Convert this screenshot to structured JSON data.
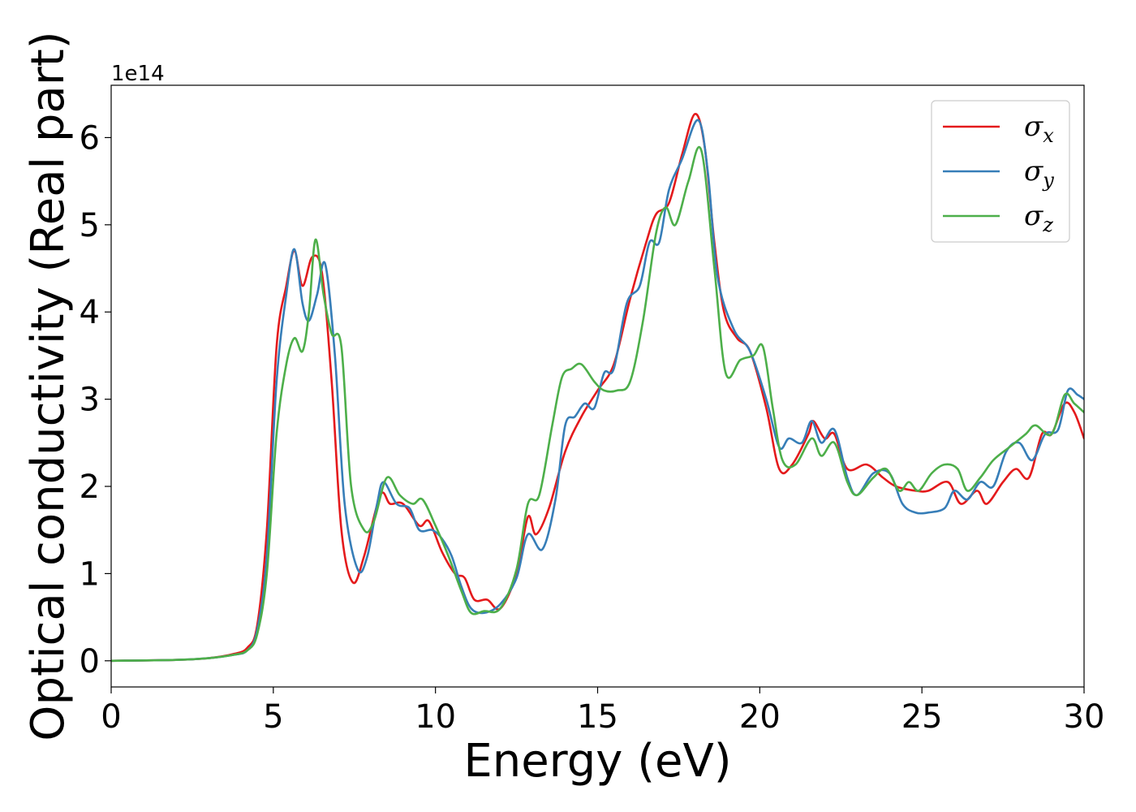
{
  "chart_data": {
    "type": "line",
    "title": "",
    "xlabel": "Energy (eV)",
    "ylabel": "Optical conductivity (Real part)",
    "y_offset_label": "1e14",
    "xlim": [
      0,
      30
    ],
    "ylim": [
      -0.3,
      6.6
    ],
    "x_ticks": [
      0,
      5,
      10,
      15,
      20,
      25,
      30
    ],
    "y_ticks": [
      0,
      1,
      2,
      3,
      4,
      5,
      6
    ],
    "grid": false,
    "legend_position": "top-right",
    "series": [
      {
        "name": "σx",
        "symbol": "σ",
        "subscript": "x",
        "color": "#e41a1c",
        "points": [
          [
            0,
            0
          ],
          [
            2,
            0.01
          ],
          [
            3,
            0.03
          ],
          [
            3.8,
            0.08
          ],
          [
            4.2,
            0.15
          ],
          [
            4.5,
            0.4
          ],
          [
            4.8,
            1.5
          ],
          [
            5.1,
            3.6
          ],
          [
            5.4,
            4.3
          ],
          [
            5.65,
            4.7
          ],
          [
            5.9,
            4.3
          ],
          [
            6.2,
            4.63
          ],
          [
            6.5,
            4.45
          ],
          [
            6.8,
            3.2
          ],
          [
            7.1,
            1.5
          ],
          [
            7.45,
            0.9
          ],
          [
            7.8,
            1.2
          ],
          [
            8.3,
            1.9
          ],
          [
            8.6,
            1.8
          ],
          [
            9,
            1.8
          ],
          [
            9.5,
            1.55
          ],
          [
            9.8,
            1.6
          ],
          [
            10.2,
            1.25
          ],
          [
            10.6,
            1.0
          ],
          [
            10.9,
            0.95
          ],
          [
            11.2,
            0.7
          ],
          [
            11.6,
            0.7
          ],
          [
            12,
            0.6
          ],
          [
            12.5,
            1.0
          ],
          [
            12.85,
            1.65
          ],
          [
            13.1,
            1.45
          ],
          [
            13.5,
            1.75
          ],
          [
            14,
            2.4
          ],
          [
            14.5,
            2.8
          ],
          [
            15,
            3.1
          ],
          [
            15.5,
            3.4
          ],
          [
            16,
            4.15
          ],
          [
            16.5,
            4.8
          ],
          [
            16.8,
            5.12
          ],
          [
            17.2,
            5.25
          ],
          [
            17.6,
            5.8
          ],
          [
            18,
            6.27
          ],
          [
            18.3,
            5.9
          ],
          [
            18.6,
            4.8
          ],
          [
            18.9,
            4.0
          ],
          [
            19.3,
            3.7
          ],
          [
            19.7,
            3.55
          ],
          [
            20.2,
            2.9
          ],
          [
            20.6,
            2.2
          ],
          [
            21,
            2.25
          ],
          [
            21.5,
            2.6
          ],
          [
            21.65,
            2.75
          ],
          [
            22,
            2.55
          ],
          [
            22.3,
            2.6
          ],
          [
            22.7,
            2.2
          ],
          [
            23.3,
            2.25
          ],
          [
            23.8,
            2.1
          ],
          [
            24.2,
            2.0
          ],
          [
            24.8,
            1.95
          ],
          [
            25.2,
            1.95
          ],
          [
            25.8,
            2.05
          ],
          [
            26.2,
            1.8
          ],
          [
            26.7,
            1.95
          ],
          [
            27,
            1.8
          ],
          [
            27.5,
            2.05
          ],
          [
            27.9,
            2.2
          ],
          [
            28.3,
            2.1
          ],
          [
            28.7,
            2.6
          ],
          [
            29,
            2.6
          ],
          [
            29.4,
            2.95
          ],
          [
            29.7,
            2.85
          ],
          [
            30,
            2.55
          ]
        ]
      },
      {
        "name": "σy",
        "symbol": "σ",
        "subscript": "y",
        "color": "#377eb8",
        "points": [
          [
            0,
            0
          ],
          [
            2,
            0.01
          ],
          [
            3,
            0.03
          ],
          [
            3.8,
            0.07
          ],
          [
            4.2,
            0.12
          ],
          [
            4.5,
            0.35
          ],
          [
            4.8,
            1.2
          ],
          [
            5.1,
            3.2
          ],
          [
            5.4,
            4.2
          ],
          [
            5.65,
            4.72
          ],
          [
            5.9,
            4.1
          ],
          [
            6.1,
            3.9
          ],
          [
            6.35,
            4.2
          ],
          [
            6.6,
            4.55
          ],
          [
            6.9,
            3.5
          ],
          [
            7.2,
            1.8
          ],
          [
            7.6,
            1.05
          ],
          [
            7.9,
            1.2
          ],
          [
            8.2,
            1.8
          ],
          [
            8.4,
            2.05
          ],
          [
            8.8,
            1.8
          ],
          [
            9.2,
            1.75
          ],
          [
            9.5,
            1.5
          ],
          [
            9.9,
            1.5
          ],
          [
            10.2,
            1.4
          ],
          [
            10.5,
            1.2
          ],
          [
            10.8,
            0.85
          ],
          [
            11.1,
            0.6
          ],
          [
            11.5,
            0.55
          ],
          [
            12,
            0.65
          ],
          [
            12.5,
            0.95
          ],
          [
            12.85,
            1.45
          ],
          [
            13.3,
            1.28
          ],
          [
            13.7,
            1.85
          ],
          [
            14,
            2.7
          ],
          [
            14.3,
            2.8
          ],
          [
            14.6,
            2.95
          ],
          [
            14.9,
            2.9
          ],
          [
            15.2,
            3.3
          ],
          [
            15.5,
            3.35
          ],
          [
            15.9,
            4.1
          ],
          [
            16.3,
            4.3
          ],
          [
            16.6,
            4.8
          ],
          [
            16.9,
            4.8
          ],
          [
            17.2,
            5.4
          ],
          [
            17.6,
            5.75
          ],
          [
            18.1,
            6.2
          ],
          [
            18.4,
            5.6
          ],
          [
            18.7,
            4.4
          ],
          [
            19.2,
            3.8
          ],
          [
            19.7,
            3.55
          ],
          [
            20.2,
            3.0
          ],
          [
            20.6,
            2.45
          ],
          [
            20.9,
            2.55
          ],
          [
            21.3,
            2.5
          ],
          [
            21.6,
            2.75
          ],
          [
            21.9,
            2.5
          ],
          [
            22.3,
            2.65
          ],
          [
            22.7,
            2.1
          ],
          [
            23,
            1.9
          ],
          [
            23.5,
            2.15
          ],
          [
            24,
            2.15
          ],
          [
            24.4,
            1.8
          ],
          [
            24.8,
            1.7
          ],
          [
            25.2,
            1.7
          ],
          [
            25.7,
            1.75
          ],
          [
            26,
            1.95
          ],
          [
            26.4,
            1.85
          ],
          [
            26.8,
            2.05
          ],
          [
            27.2,
            2.0
          ],
          [
            27.6,
            2.4
          ],
          [
            28,
            2.5
          ],
          [
            28.4,
            2.3
          ],
          [
            28.8,
            2.6
          ],
          [
            29.2,
            2.65
          ],
          [
            29.5,
            3.1
          ],
          [
            29.8,
            3.05
          ],
          [
            30,
            3.0
          ]
        ]
      },
      {
        "name": "σz",
        "symbol": "σ",
        "subscript": "z",
        "color": "#4daf4a",
        "points": [
          [
            0,
            0
          ],
          [
            2,
            0.01
          ],
          [
            3,
            0.03
          ],
          [
            3.8,
            0.07
          ],
          [
            4.2,
            0.12
          ],
          [
            4.5,
            0.3
          ],
          [
            4.8,
            1.0
          ],
          [
            5.1,
            2.6
          ],
          [
            5.4,
            3.4
          ],
          [
            5.65,
            3.7
          ],
          [
            5.9,
            3.55
          ],
          [
            6.1,
            4.0
          ],
          [
            6.3,
            4.83
          ],
          [
            6.55,
            4.2
          ],
          [
            6.8,
            3.75
          ],
          [
            7.1,
            3.6
          ],
          [
            7.4,
            2.0
          ],
          [
            7.8,
            1.5
          ],
          [
            8.1,
            1.6
          ],
          [
            8.5,
            2.1
          ],
          [
            8.9,
            1.9
          ],
          [
            9.3,
            1.8
          ],
          [
            9.6,
            1.85
          ],
          [
            10,
            1.55
          ],
          [
            10.4,
            1.2
          ],
          [
            10.8,
            0.8
          ],
          [
            11.1,
            0.55
          ],
          [
            11.5,
            0.57
          ],
          [
            12,
            0.6
          ],
          [
            12.5,
            1.05
          ],
          [
            12.85,
            1.8
          ],
          [
            13.2,
            1.9
          ],
          [
            13.6,
            2.7
          ],
          [
            13.9,
            3.25
          ],
          [
            14.2,
            3.35
          ],
          [
            14.5,
            3.4
          ],
          [
            14.9,
            3.2
          ],
          [
            15.2,
            3.1
          ],
          [
            15.6,
            3.1
          ],
          [
            16,
            3.2
          ],
          [
            16.4,
            3.9
          ],
          [
            16.8,
            4.9
          ],
          [
            17.1,
            5.2
          ],
          [
            17.4,
            5.0
          ],
          [
            17.8,
            5.5
          ],
          [
            18.2,
            5.85
          ],
          [
            18.6,
            4.5
          ],
          [
            18.95,
            3.3
          ],
          [
            19.4,
            3.45
          ],
          [
            19.8,
            3.5
          ],
          [
            20.1,
            3.6
          ],
          [
            20.4,
            2.9
          ],
          [
            20.7,
            2.3
          ],
          [
            21.1,
            2.25
          ],
          [
            21.6,
            2.55
          ],
          [
            21.9,
            2.35
          ],
          [
            22.3,
            2.5
          ],
          [
            22.7,
            2.05
          ],
          [
            23,
            1.9
          ],
          [
            23.5,
            2.1
          ],
          [
            23.9,
            2.2
          ],
          [
            24.3,
            1.95
          ],
          [
            24.6,
            2.05
          ],
          [
            24.9,
            1.95
          ],
          [
            25.3,
            2.15
          ],
          [
            25.7,
            2.25
          ],
          [
            26.1,
            2.2
          ],
          [
            26.4,
            1.95
          ],
          [
            26.8,
            2.1
          ],
          [
            27.2,
            2.3
          ],
          [
            27.7,
            2.45
          ],
          [
            28.2,
            2.6
          ],
          [
            28.5,
            2.7
          ],
          [
            29,
            2.6
          ],
          [
            29.4,
            3.05
          ],
          [
            29.7,
            2.95
          ],
          [
            30,
            2.85
          ]
        ]
      }
    ]
  }
}
